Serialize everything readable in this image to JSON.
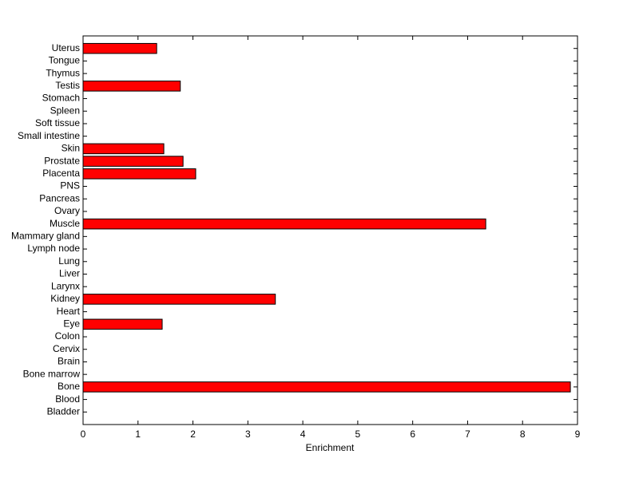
{
  "chart_data": {
    "type": "barh",
    "xlabel": "Enrichment",
    "categories": [
      "Bladder",
      "Blood",
      "Bone",
      "Bone marrow",
      "Brain",
      "Cervix",
      "Colon",
      "Eye",
      "Heart",
      "Kidney",
      "Larynx",
      "Liver",
      "Lung",
      "Lymph node",
      "Mammary gland",
      "Muscle",
      "Ovary",
      "Pancreas",
      "PNS",
      "Placenta",
      "Prostate",
      "Skin",
      "Small intestine",
      "Soft tissue",
      "Spleen",
      "Stomach",
      "Testis",
      "Thymus",
      "Tongue",
      "Uterus"
    ],
    "values": [
      0,
      0,
      8.87,
      0,
      0,
      0,
      0,
      1.44,
      0,
      3.5,
      0,
      0,
      0,
      0,
      0,
      7.33,
      0,
      0,
      0,
      2.05,
      1.82,
      1.47,
      0,
      0,
      0,
      0,
      1.77,
      0,
      0,
      1.34
    ],
    "color": "#ff0000",
    "xlim": [
      0,
      9
    ],
    "xticks": [
      0,
      1,
      2,
      3,
      4,
      5,
      6,
      7,
      8,
      9
    ],
    "grid": false
  }
}
